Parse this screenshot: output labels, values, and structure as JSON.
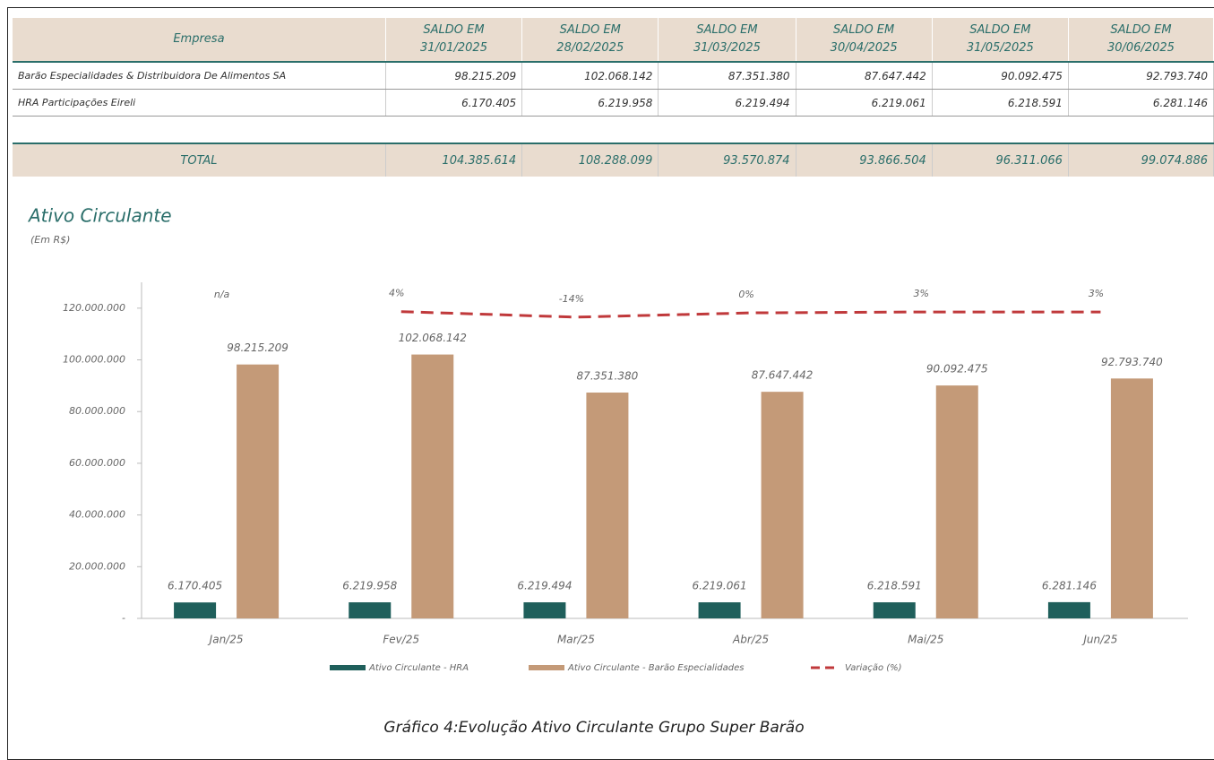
{
  "table": {
    "header": [
      "Empresa",
      [
        "SALDO EM",
        "31/01/2025"
      ],
      [
        "SALDO EM",
        "28/02/2025"
      ],
      [
        "SALDO EM",
        "31/03/2025"
      ],
      [
        "SALDO EM",
        "30/04/2025"
      ],
      [
        "SALDO EM",
        "31/05/2025"
      ],
      [
        "SALDO EM",
        "30/06/2025"
      ]
    ],
    "rows": [
      [
        "Barão Especialidades & Distribuidora De Alimentos SA",
        "98.215.209",
        "102.068.142",
        "87.351.380",
        "87.647.442",
        "90.092.475",
        "92.793.740"
      ],
      [
        "HRA Participações Eireli",
        "6.170.405",
        "6.219.958",
        "6.219.494",
        "6.219.061",
        "6.218.591",
        "6.281.146"
      ]
    ],
    "total": [
      "TOTAL",
      "104.385.614",
      "108.288.099",
      "93.570.874",
      "93.866.504",
      "96.311.066",
      "99.074.886"
    ]
  },
  "chart_data": {
    "type": "bar",
    "title": "Ativo Circulante",
    "subtitle": "(Em R$)",
    "categories": [
      "Jan/25",
      "Fev/25",
      "Mar/25",
      "Abr/25",
      "Mai/25",
      "Jun/25"
    ],
    "series": [
      {
        "name": "Ativo Circulante - HRA",
        "color": "#1f5f5b",
        "values": [
          6170405,
          6219958,
          6219494,
          6219061,
          6218591,
          6281146
        ],
        "value_labels": [
          "6.170.405",
          "6.219.958",
          "6.219.494",
          "6.219.061",
          "6.218.591",
          "6.281.146"
        ]
      },
      {
        "name": "Ativo Circulante - Barão Especialidades",
        "color": "#c49a78",
        "values": [
          98215209,
          102068142,
          87351380,
          87647442,
          90092475,
          92793740
        ],
        "value_labels": [
          "98.215.209",
          "102.068.142",
          "87.351.380",
          "87.647.442",
          "90.092.475",
          "92.793.740"
        ]
      },
      {
        "name": "Variação (%)",
        "type": "line",
        "color": "#c0393b",
        "axis": "y2",
        "values": [
          null,
          4,
          -14,
          0,
          3,
          3
        ],
        "value_labels": [
          "n/a",
          "4%",
          "-14%",
          "0%",
          "3%",
          "3%"
        ]
      }
    ],
    "ylim": [
      0,
      130000000
    ],
    "yticks": [
      {
        "value": 0,
        "label": "-"
      },
      {
        "value": 20000000,
        "label": "20.000.000"
      },
      {
        "value": 40000000,
        "label": "40.000.000"
      },
      {
        "value": 60000000,
        "label": "60.000.000"
      },
      {
        "value": 80000000,
        "label": "80.000.000"
      },
      {
        "value": 100000000,
        "label": "100.000.000"
      },
      {
        "value": 120000000,
        "label": "120.000.000"
      }
    ],
    "y2lim": [
      -1000,
      100
    ],
    "legend": "bottom"
  },
  "caption": "Gráfico 4:Evolução Ativo Circulante Grupo Super Barão"
}
